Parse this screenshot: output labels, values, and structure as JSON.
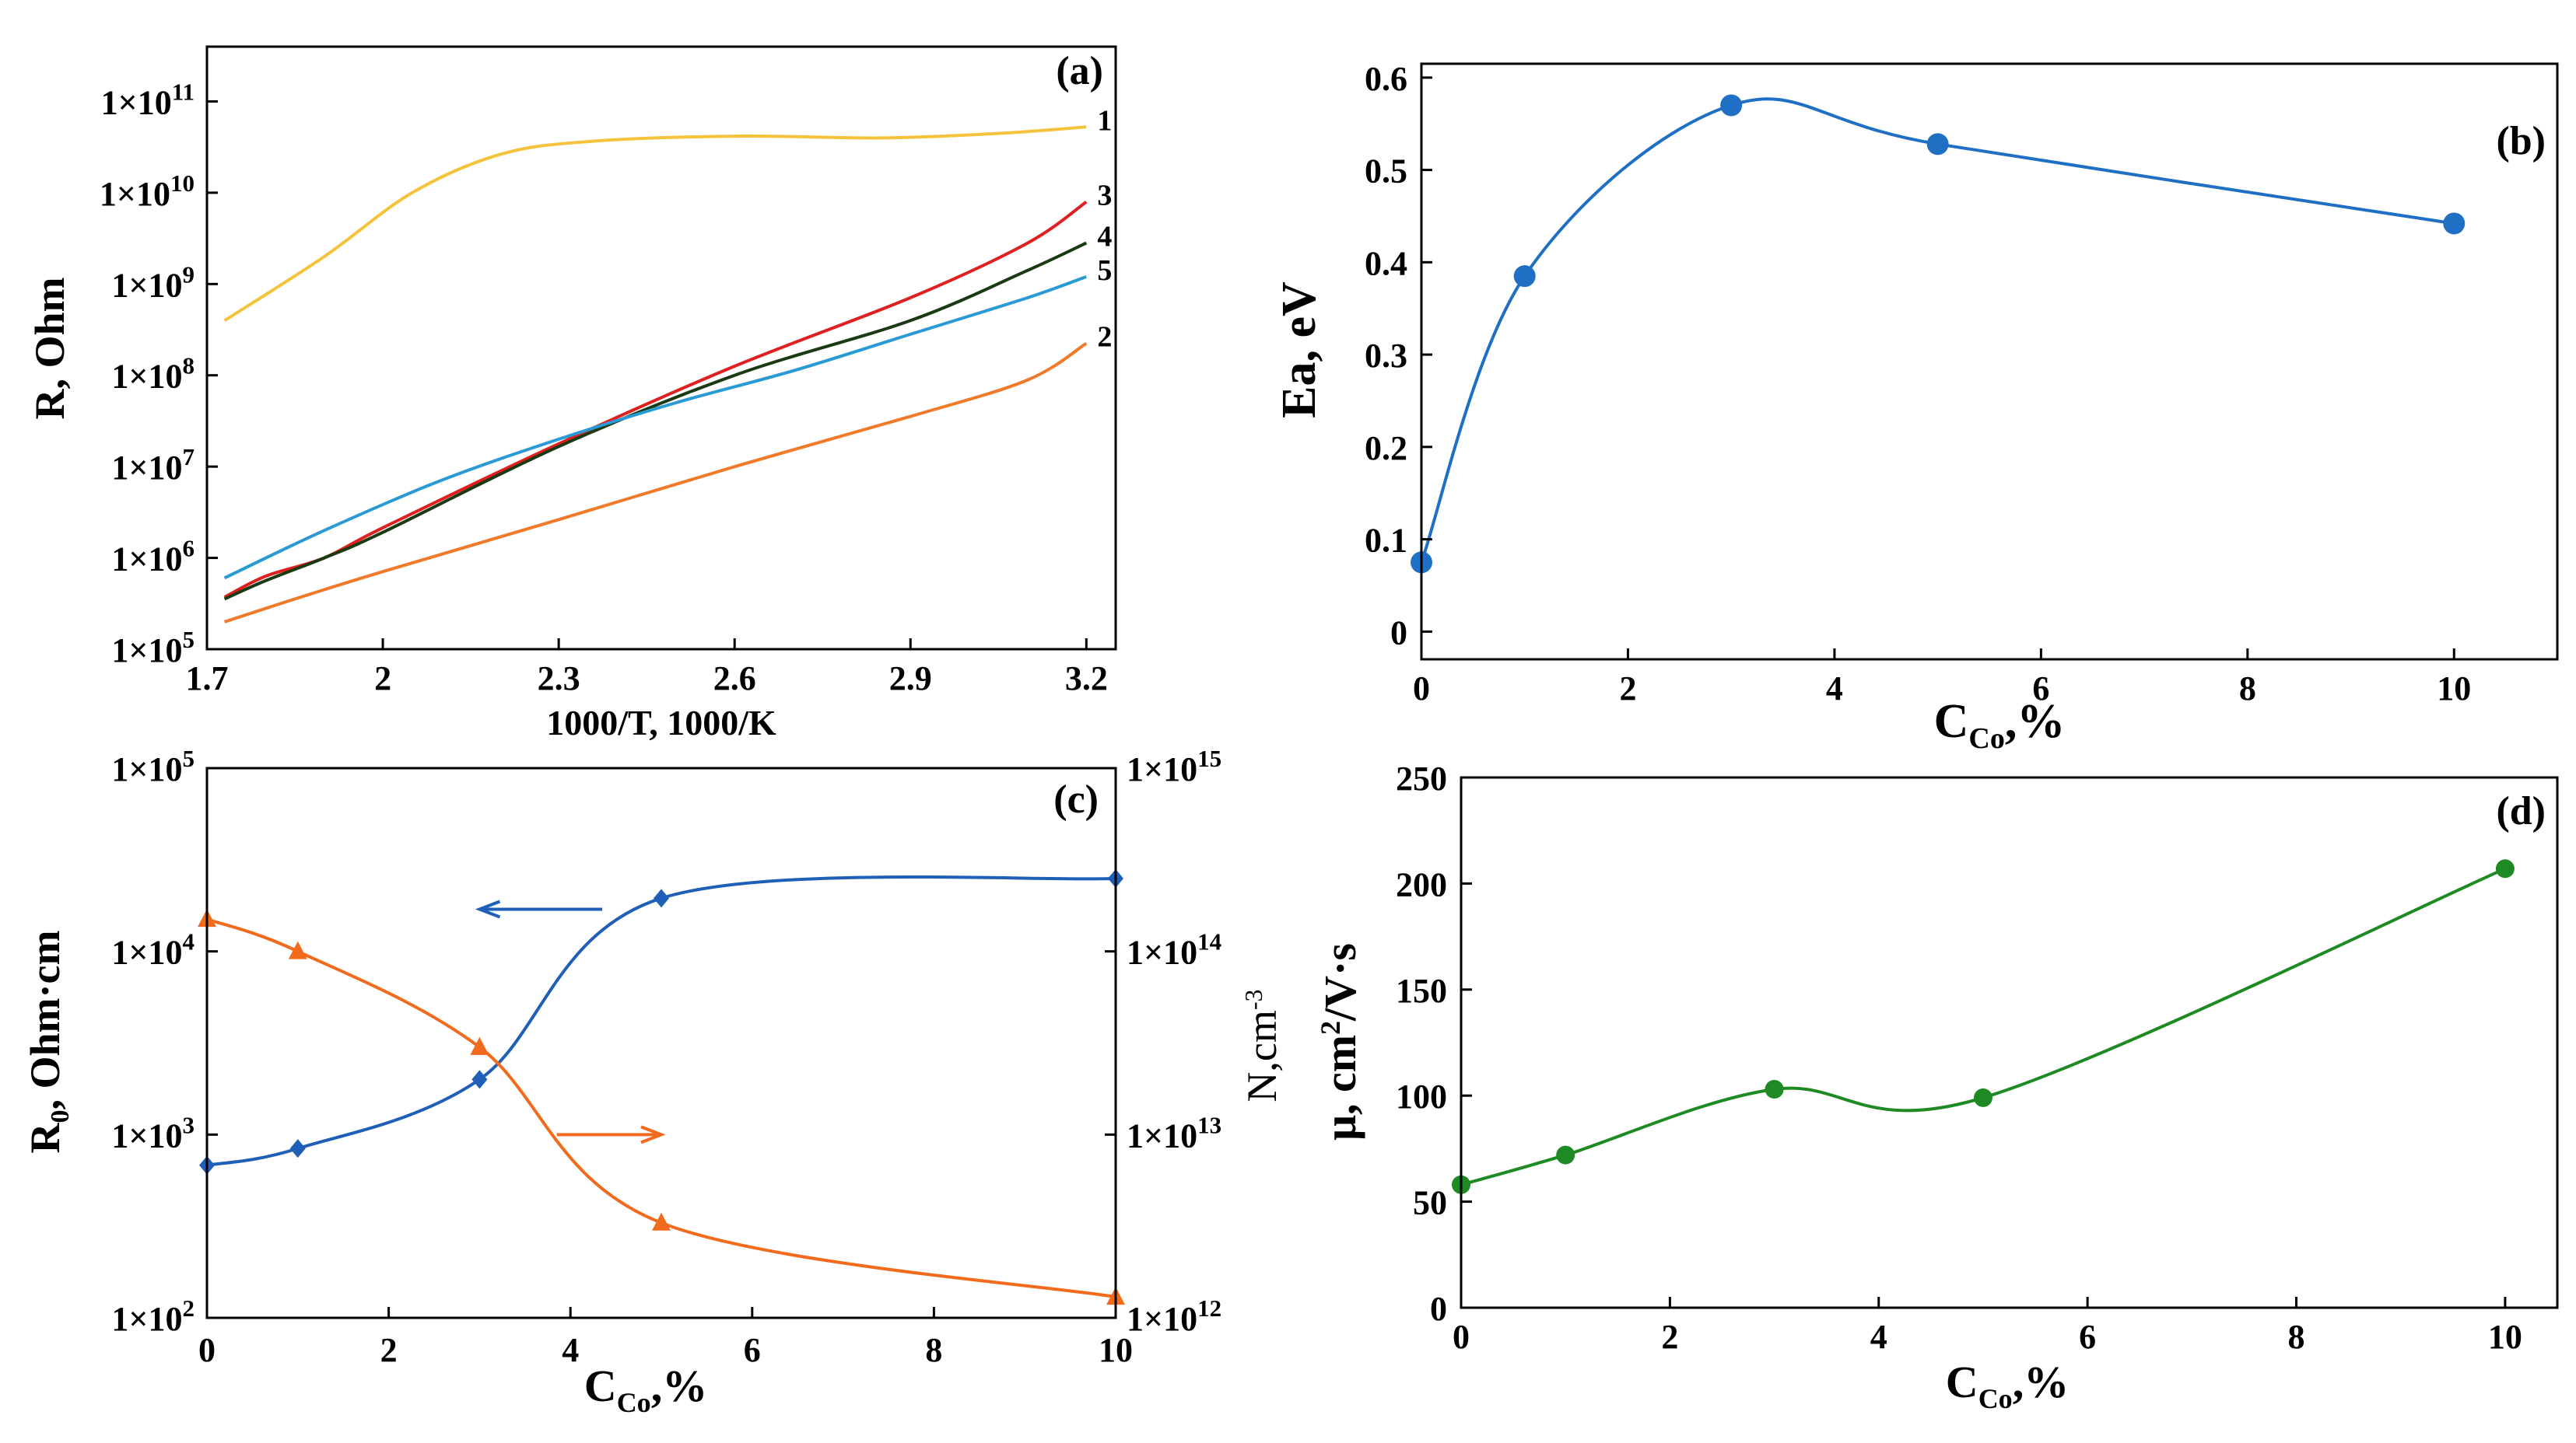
{
  "figure": {
    "panels": [
      "(a)",
      "(b)",
      "(c)",
      "(d)"
    ]
  },
  "chart_data": [
    {
      "id": "a",
      "type": "line",
      "panel_label": "(a)",
      "xlabel": "1000/T, 1000/K",
      "ylabel": "R, Ohm",
      "yscale": "log",
      "xlim": [
        1.7,
        3.25
      ],
      "ylim_log10": [
        5,
        11.6
      ],
      "xticks": [
        1.7,
        2,
        2.3,
        2.6,
        2.9,
        3.2
      ],
      "xtick_labels": [
        "1.7",
        "2",
        "2.3",
        "2.6",
        "2.9",
        "3.2"
      ],
      "yticks_log10": [
        5,
        6,
        7,
        8,
        9,
        10,
        11
      ],
      "ytick_labels": [
        {
          "base": "1×10",
          "exp": "5"
        },
        {
          "base": "1×10",
          "exp": "6"
        },
        {
          "base": "1×10",
          "exp": "7"
        },
        {
          "base": "1×10",
          "exp": "8"
        },
        {
          "base": "1×10",
          "exp": "9"
        },
        {
          "base": "1×10",
          "exp": "10"
        },
        {
          "base": "1×10",
          "exp": "11"
        }
      ],
      "series": [
        {
          "name": "1",
          "color": "#f5c33b",
          "x": [
            1.73,
            1.9,
            2.05,
            2.2,
            2.35,
            2.6,
            2.85,
            3.05,
            3.2
          ],
          "log10y": [
            8.6,
            9.3,
            10.0,
            10.42,
            10.56,
            10.62,
            10.6,
            10.65,
            10.72
          ]
        },
        {
          "name": "2",
          "color": "#f07a2a",
          "x": [
            1.73,
            1.85,
            2.0,
            2.3,
            2.6,
            2.9,
            3.1,
            3.2
          ],
          "log10y": [
            5.3,
            5.55,
            5.85,
            6.42,
            7.0,
            7.55,
            7.95,
            8.35
          ]
        },
        {
          "name": "3",
          "color": "#e02020",
          "x": [
            1.73,
            1.8,
            1.9,
            2.0,
            2.3,
            2.6,
            2.9,
            3.1,
            3.2
          ],
          "log10y": [
            5.57,
            5.8,
            6.0,
            6.33,
            7.25,
            8.1,
            8.85,
            9.45,
            9.9
          ]
        },
        {
          "name": "4",
          "color": "#1a3a14",
          "x": [
            1.73,
            1.8,
            1.9,
            2.0,
            2.3,
            2.6,
            2.9,
            3.1,
            3.2
          ],
          "log10y": [
            5.55,
            5.75,
            6.0,
            6.28,
            7.22,
            8.0,
            8.6,
            9.15,
            9.45
          ]
        },
        {
          "name": "5",
          "color": "#2a9ad5",
          "x": [
            1.73,
            1.9,
            2.1,
            2.3,
            2.5,
            2.7,
            2.9,
            3.1,
            3.2
          ],
          "log10y": [
            5.78,
            6.3,
            6.85,
            7.3,
            7.7,
            8.05,
            8.45,
            8.85,
            9.08
          ]
        }
      ],
      "curve_labels": [
        "1",
        "3",
        "4",
        "5",
        "2"
      ]
    },
    {
      "id": "b",
      "type": "line",
      "panel_label": "(b)",
      "xlabel_main": "C",
      "xlabel_sub": "Co",
      "xlabel_tail": ",%",
      "ylabel": "Ea, eV",
      "xlim": [
        0,
        11
      ],
      "ylim": [
        0,
        0.6
      ],
      "xticks": [
        0,
        2,
        4,
        6,
        8,
        10
      ],
      "xtick_labels": [
        "0",
        "2",
        "4",
        "6",
        "8",
        "10"
      ],
      "yticks": [
        0,
        0.1,
        0.2,
        0.3,
        0.4,
        0.5,
        0.6
      ],
      "ytick_labels": [
        "0",
        "0.1",
        "0.2",
        "0.3",
        "0.4",
        "0.5",
        "0.6"
      ],
      "series": [
        {
          "name": "Ea",
          "color": "#1f6fc4",
          "x": [
            0,
            1,
            3,
            5,
            10
          ],
          "y": [
            0.075,
            0.385,
            0.57,
            0.528,
            0.442
          ]
        }
      ]
    },
    {
      "id": "c",
      "type": "line",
      "panel_label": "(c)",
      "xlabel_main": "C",
      "xlabel_sub": "Co",
      "xlabel_tail": ",%",
      "ylabel_left_main": "R",
      "ylabel_left_sub": "0",
      "ylabel_left_tail": ", Ohm·cm",
      "ylabel_right_main": "N,cm",
      "ylabel_right_sup": "-3",
      "xlim": [
        0,
        10
      ],
      "ylim_left_log10": [
        2,
        5
      ],
      "ylim_right_log10": [
        12,
        15
      ],
      "xticks": [
        0,
        2,
        4,
        6,
        8,
        10
      ],
      "xtick_labels": [
        "0",
        "2",
        "4",
        "6",
        "8",
        "10"
      ],
      "yticks_left_log10": [
        2,
        3,
        4,
        5
      ],
      "ytick_left_labels": [
        {
          "base": "1×10",
          "exp": "2"
        },
        {
          "base": "1×10",
          "exp": "3"
        },
        {
          "base": "1×10",
          "exp": "4"
        },
        {
          "base": "1×10",
          "exp": "5"
        }
      ],
      "yticks_right_log10": [
        12,
        13,
        14,
        15
      ],
      "ytick_right_labels": [
        {
          "base": "1×10",
          "exp": "12"
        },
        {
          "base": "1×10",
          "exp": "13"
        },
        {
          "base": "1×10",
          "exp": "14"
        },
        {
          "base": "1×10",
          "exp": "15"
        }
      ],
      "series": [
        {
          "name": "R0",
          "axis": "left",
          "marker": "diamond",
          "color": "#1f5fb8",
          "x": [
            0,
            1,
            3,
            5,
            10
          ],
          "y": [
            680,
            840,
            2000,
            19500,
            25000
          ]
        },
        {
          "name": "N",
          "axis": "right",
          "marker": "triangle",
          "color": "#f26a1b",
          "x": [
            0,
            1,
            3,
            5,
            10
          ],
          "y": [
            150000000000000.0,
            100000000000000.0,
            30000000000000.0,
            3300000000000.0,
            1300000000000.0
          ]
        }
      ],
      "arrows": [
        {
          "points_to": "left",
          "color": "#1f5fb8"
        },
        {
          "points_to": "right",
          "color": "#f26a1b"
        }
      ]
    },
    {
      "id": "d",
      "type": "line",
      "panel_label": "(d)",
      "xlabel_main": "C",
      "xlabel_sub": "Co",
      "xlabel_tail": ",%",
      "ylabel_main": "μ, cm",
      "ylabel_sup": "2",
      "ylabel_tail": "/V·s",
      "xlim": [
        0,
        10.5
      ],
      "ylim": [
        0,
        250
      ],
      "xticks": [
        0,
        2,
        4,
        6,
        8,
        10
      ],
      "xtick_labels": [
        "0",
        "2",
        "4",
        "6",
        "8",
        "10"
      ],
      "yticks": [
        0,
        50,
        100,
        150,
        200,
        250
      ],
      "ytick_labels": [
        "0",
        "50",
        "100",
        "150",
        "200",
        "250"
      ],
      "series": [
        {
          "name": "mobility",
          "color": "#1e8a24",
          "x": [
            0,
            1,
            3,
            5,
            10
          ],
          "y": [
            58,
            72,
            103,
            99,
            207
          ]
        }
      ]
    }
  ]
}
